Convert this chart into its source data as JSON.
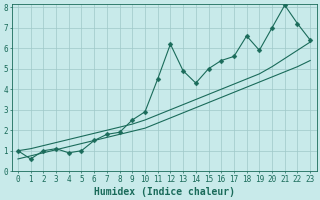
{
  "xlabel": "Humidex (Indice chaleur)",
  "bg_color": "#c8eaea",
  "grid_color": "#9fc8c8",
  "line_color": "#1a6b5a",
  "x_data": [
    0,
    1,
    2,
    3,
    4,
    5,
    6,
    7,
    8,
    9,
    10,
    11,
    12,
    13,
    14,
    15,
    16,
    17,
    18,
    19,
    20,
    21,
    22,
    23
  ],
  "y_main": [
    1.0,
    0.6,
    1.0,
    1.1,
    0.9,
    1.0,
    1.5,
    1.8,
    1.9,
    2.5,
    2.9,
    4.5,
    6.2,
    4.9,
    4.3,
    5.0,
    5.4,
    5.6,
    6.6,
    5.9,
    7.0,
    8.1,
    7.2,
    6.4
  ],
  "y_trend1": [
    0.6,
    0.75,
    0.9,
    1.05,
    1.2,
    1.35,
    1.5,
    1.65,
    1.8,
    1.95,
    2.1,
    2.35,
    2.6,
    2.85,
    3.1,
    3.35,
    3.6,
    3.85,
    4.1,
    4.35,
    4.6,
    4.85,
    5.1,
    5.4
  ],
  "y_trend2": [
    1.0,
    1.1,
    1.25,
    1.4,
    1.55,
    1.7,
    1.85,
    2.0,
    2.15,
    2.3,
    2.5,
    2.75,
    3.0,
    3.25,
    3.5,
    3.75,
    4.0,
    4.25,
    4.5,
    4.75,
    5.1,
    5.5,
    5.9,
    6.3
  ],
  "ylim": [
    0,
    8
  ],
  "xlim": [
    -0.5,
    23.5
  ],
  "xtick_labels": [
    "0",
    "1",
    "2",
    "3",
    "4",
    "5",
    "6",
    "7",
    "8",
    "9",
    "10",
    "11",
    "12",
    "13",
    "14",
    "15",
    "16",
    "17",
    "18",
    "19",
    "20",
    "21",
    "22",
    "23"
  ],
  "ytick_labels": [
    "0",
    "1",
    "2",
    "3",
    "4",
    "5",
    "6",
    "7",
    "8"
  ],
  "markersize": 2.5,
  "linewidth": 0.8,
  "xlabel_fontsize": 7,
  "tick_fontsize": 5.5
}
